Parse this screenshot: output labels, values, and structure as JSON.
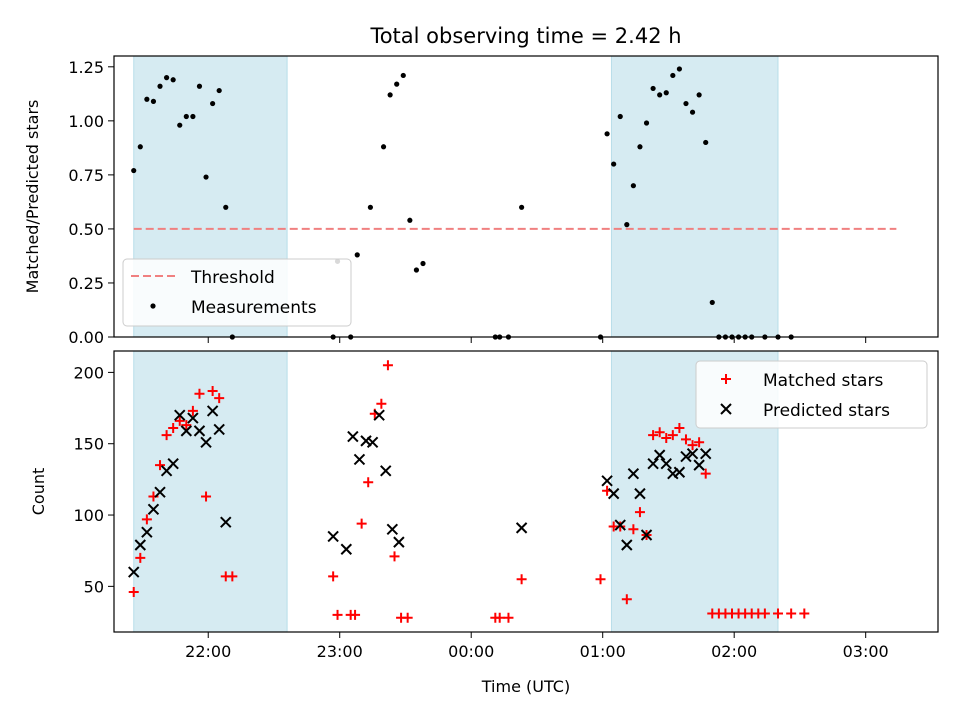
{
  "chart_data": [
    {
      "type": "scatter",
      "title": "Total observing time = 2.42 h",
      "xlabel": "",
      "ylabel": "Matched/Predicted stars",
      "ylim": [
        0,
        1.3
      ],
      "yticks": [
        "0.00",
        "0.25",
        "0.50",
        "0.75",
        "1.00",
        "1.25"
      ],
      "xlim": [
        "21:17",
        "03:33"
      ],
      "grid": false,
      "shaded_regions": [
        [
          "21:26",
          "22:36"
        ],
        [
          "01:04",
          "02:20"
        ]
      ],
      "threshold": {
        "name": "Threshold",
        "value": 0.5,
        "x_range": [
          "21:26",
          "03:14"
        ],
        "color": "#f08080"
      },
      "legend": {
        "position": "lower-left",
        "entries": [
          "Threshold",
          "Measurements"
        ]
      },
      "series": [
        {
          "name": "Measurements",
          "color": "#000000",
          "points": [
            [
              "21:26",
              0.77
            ],
            [
              "21:29",
              0.88
            ],
            [
              "21:32",
              1.1
            ],
            [
              "21:35",
              1.09
            ],
            [
              "21:38",
              1.16
            ],
            [
              "21:41",
              1.2
            ],
            [
              "21:44",
              1.19
            ],
            [
              "21:47",
              0.98
            ],
            [
              "21:50",
              1.02
            ],
            [
              "21:53",
              1.02
            ],
            [
              "21:56",
              1.16
            ],
            [
              "21:59",
              0.74
            ],
            [
              "22:02",
              1.08
            ],
            [
              "22:05",
              1.14
            ],
            [
              "22:08",
              0.6
            ],
            [
              "22:11",
              0.0
            ],
            [
              "22:57",
              0.0
            ],
            [
              "22:59",
              0.35
            ],
            [
              "23:05",
              0.0
            ],
            [
              "23:08",
              0.38
            ],
            [
              "23:14",
              0.6
            ],
            [
              "23:20",
              0.88
            ],
            [
              "23:23",
              1.12
            ],
            [
              "23:26",
              1.17
            ],
            [
              "23:29",
              1.21
            ],
            [
              "23:32",
              0.54
            ],
            [
              "23:35",
              0.31
            ],
            [
              "23:38",
              0.34
            ],
            [
              "00:11",
              0.0
            ],
            [
              "00:13",
              0.0
            ],
            [
              "00:17",
              0.0
            ],
            [
              "00:23",
              0.6
            ],
            [
              "00:59",
              0.0
            ],
            [
              "01:02",
              0.94
            ],
            [
              "01:05",
              0.8
            ],
            [
              "01:08",
              1.02
            ],
            [
              "01:11",
              0.52
            ],
            [
              "01:14",
              0.7
            ],
            [
              "01:17",
              0.88
            ],
            [
              "01:20",
              0.99
            ],
            [
              "01:23",
              1.15
            ],
            [
              "01:26",
              1.12
            ],
            [
              "01:29",
              1.13
            ],
            [
              "01:32",
              1.21
            ],
            [
              "01:35",
              1.24
            ],
            [
              "01:38",
              1.08
            ],
            [
              "01:41",
              1.04
            ],
            [
              "01:44",
              1.12
            ],
            [
              "01:47",
              0.9
            ],
            [
              "01:50",
              0.16
            ],
            [
              "01:53",
              0.0
            ],
            [
              "01:56",
              0.0
            ],
            [
              "01:59",
              0.0
            ],
            [
              "02:02",
              0.0
            ],
            [
              "02:05",
              0.0
            ],
            [
              "02:08",
              0.0
            ],
            [
              "02:14",
              0.0
            ],
            [
              "02:20",
              0.0
            ],
            [
              "02:26",
              0.0
            ]
          ]
        }
      ]
    },
    {
      "type": "scatter",
      "title": "",
      "xlabel": "Time (UTC)",
      "ylabel": "Count",
      "ylim": [
        18,
        215
      ],
      "yticks": [
        "50",
        "100",
        "150",
        "200"
      ],
      "xticks": [
        "22:00",
        "23:00",
        "00:00",
        "01:00",
        "02:00",
        "03:00"
      ],
      "xlim": [
        "21:17",
        "03:33"
      ],
      "grid": false,
      "shaded_regions": [
        [
          "21:26",
          "22:36"
        ],
        [
          "01:04",
          "02:20"
        ]
      ],
      "legend": {
        "position": "top-right",
        "entries": [
          "Matched stars",
          "Predicted stars"
        ]
      },
      "series": [
        {
          "name": "Matched stars",
          "marker": "+",
          "color": "#ff0000",
          "points": [
            [
              "21:26",
              46
            ],
            [
              "21:29",
              70
            ],
            [
              "21:32",
              97
            ],
            [
              "21:35",
              113
            ],
            [
              "21:38",
              135
            ],
            [
              "21:41",
              156
            ],
            [
              "21:44",
              161
            ],
            [
              "21:47",
              166
            ],
            [
              "21:50",
              163
            ],
            [
              "21:53",
              173
            ],
            [
              "21:56",
              185
            ],
            [
              "21:59",
              113
            ],
            [
              "22:02",
              187
            ],
            [
              "22:05",
              182
            ],
            [
              "22:08",
              57
            ],
            [
              "22:11",
              57
            ],
            [
              "22:57",
              57
            ],
            [
              "22:59",
              30
            ],
            [
              "23:05",
              30
            ],
            [
              "23:07",
              30
            ],
            [
              "23:10",
              94
            ],
            [
              "23:13",
              123
            ],
            [
              "23:16",
              171
            ],
            [
              "23:19",
              178
            ],
            [
              "23:22",
              205
            ],
            [
              "23:25",
              71
            ],
            [
              "23:28",
              28
            ],
            [
              "23:31",
              28
            ],
            [
              "00:11",
              28
            ],
            [
              "00:13",
              28
            ],
            [
              "00:17",
              28
            ],
            [
              "00:23",
              55
            ],
            [
              "00:59",
              55
            ],
            [
              "01:02",
              117
            ],
            [
              "01:05",
              92
            ],
            [
              "01:08",
              92
            ],
            [
              "01:11",
              41
            ],
            [
              "01:14",
              90
            ],
            [
              "01:17",
              102
            ],
            [
              "01:20",
              86
            ],
            [
              "01:23",
              156
            ],
            [
              "01:26",
              158
            ],
            [
              "01:29",
              154
            ],
            [
              "01:32",
              156
            ],
            [
              "01:35",
              161
            ],
            [
              "01:38",
              153
            ],
            [
              "01:41",
              149
            ],
            [
              "01:44",
              151
            ],
            [
              "01:47",
              129
            ],
            [
              "01:50",
              31
            ],
            [
              "01:53",
              31
            ],
            [
              "01:56",
              31
            ],
            [
              "01:59",
              31
            ],
            [
              "02:02",
              31
            ],
            [
              "02:05",
              31
            ],
            [
              "02:08",
              31
            ],
            [
              "02:11",
              31
            ],
            [
              "02:14",
              31
            ],
            [
              "02:20",
              31
            ],
            [
              "02:26",
              31
            ],
            [
              "02:32",
              31
            ]
          ]
        },
        {
          "name": "Predicted stars",
          "marker": "x",
          "color": "#000000",
          "points": [
            [
              "21:26",
              60
            ],
            [
              "21:29",
              79
            ],
            [
              "21:32",
              88
            ],
            [
              "21:35",
              104
            ],
            [
              "21:38",
              116
            ],
            [
              "21:41",
              131
            ],
            [
              "21:44",
              136
            ],
            [
              "21:47",
              170
            ],
            [
              "21:50",
              159
            ],
            [
              "21:53",
              168
            ],
            [
              "21:56",
              159
            ],
            [
              "21:59",
              151
            ],
            [
              "22:02",
              173
            ],
            [
              "22:05",
              160
            ],
            [
              "22:08",
              95
            ],
            [
              "22:57",
              85
            ],
            [
              "23:03",
              76
            ],
            [
              "23:06",
              155
            ],
            [
              "23:09",
              139
            ],
            [
              "23:12",
              152
            ],
            [
              "23:15",
              151
            ],
            [
              "23:18",
              170
            ],
            [
              "23:21",
              131
            ],
            [
              "23:24",
              90
            ],
            [
              "23:27",
              81
            ],
            [
              "00:23",
              91
            ],
            [
              "01:02",
              124
            ],
            [
              "01:05",
              115
            ],
            [
              "01:08",
              93
            ],
            [
              "01:11",
              79
            ],
            [
              "01:14",
              129
            ],
            [
              "01:17",
              115
            ],
            [
              "01:20",
              86
            ],
            [
              "01:23",
              136
            ],
            [
              "01:26",
              142
            ],
            [
              "01:29",
              136
            ],
            [
              "01:32",
              129
            ],
            [
              "01:35",
              130
            ],
            [
              "01:38",
              141
            ],
            [
              "01:41",
              143
            ],
            [
              "01:44",
              135
            ],
            [
              "01:47",
              143
            ]
          ]
        }
      ]
    }
  ]
}
